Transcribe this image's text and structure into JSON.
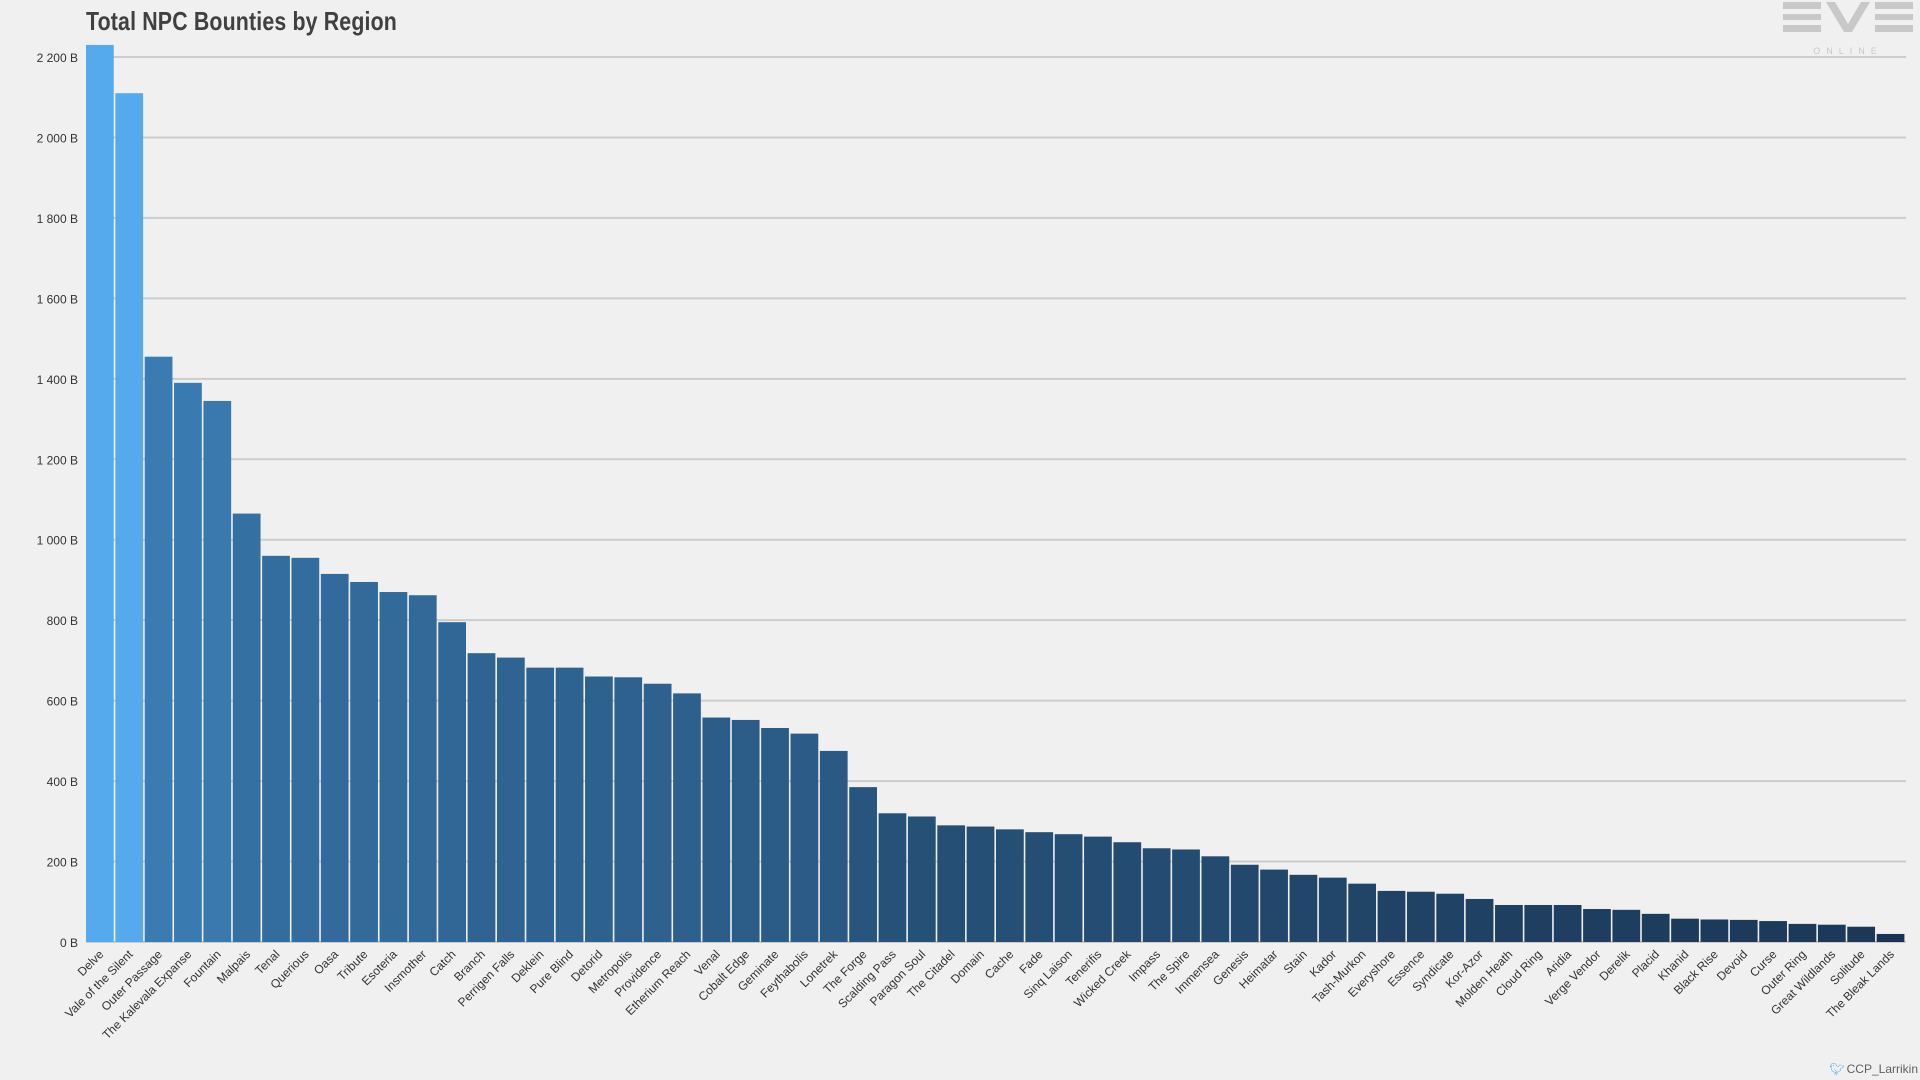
{
  "title": "Total NPC Bounties by Region",
  "credit": "CCP_Larrikin",
  "logo": {
    "main": "EVE",
    "sub": "ONLINE"
  },
  "colors": {
    "background": "#f0f0f0",
    "grid": "#cccccc",
    "tick_text": "#333333",
    "bar_highlight": "#55aaee",
    "bar_high": "#3a7cb2",
    "bar_low": "#152b45"
  },
  "chart_data": {
    "type": "bar",
    "title": "Total NPC Bounties by Region",
    "xlabel": "",
    "ylabel": "",
    "ylim": [
      0,
      2200
    ],
    "yticks": [
      0,
      200,
      400,
      600,
      800,
      1000,
      1200,
      1400,
      1600,
      1800,
      2000,
      2200
    ],
    "ytick_labels": [
      "0 B",
      "200 B",
      "400 B",
      "600 B",
      "800 B",
      "1 000 B",
      "1 200 B",
      "1 400 B",
      "1 600 B",
      "1 800 B",
      "2 000 B",
      "2 200 B"
    ],
    "grid": true,
    "legend": "none",
    "categories": [
      "Delve",
      "Vale of the Silent",
      "Outer Passage",
      "The Kalevala Expanse",
      "Fountain",
      "Malpais",
      "Tenal",
      "Querious",
      "Oasa",
      "Tribute",
      "Esoteria",
      "Insmother",
      "Catch",
      "Branch",
      "Perrigen Falls",
      "Deklein",
      "Pure Blind",
      "Detorid",
      "Metropolis",
      "Providence",
      "Etherium Reach",
      "Venal",
      "Cobalt Edge",
      "Geminate",
      "Feythabolis",
      "Lonetrek",
      "The Forge",
      "Scalding Pass",
      "Paragon Soul",
      "The Citadel",
      "Domain",
      "Cache",
      "Fade",
      "Sinq Laison",
      "Tenerifis",
      "Wicked Creek",
      "Impass",
      "The Spire",
      "Immensea",
      "Genesis",
      "Heimatar",
      "Stain",
      "Kador",
      "Tash-Murkon",
      "Everyshore",
      "Essence",
      "Syndicate",
      "Kor-Azor",
      "Molden Heath",
      "Cloud Ring",
      "Aridia",
      "Verge Vendor",
      "Derelik",
      "Placid",
      "Khanid",
      "Black Rise",
      "Devoid",
      "Curse",
      "Outer Ring",
      "Great Wildlands",
      "Solitude",
      "The Bleak Lands"
    ],
    "values": [
      2230,
      2110,
      1455,
      1390,
      1345,
      1065,
      960,
      955,
      915,
      895,
      870,
      862,
      795,
      718,
      707,
      682,
      682,
      660,
      658,
      642,
      618,
      558,
      552,
      532,
      518,
      475,
      385,
      320,
      312,
      290,
      287,
      280,
      273,
      268,
      262,
      248,
      233,
      230,
      213,
      192,
      180,
      167,
      160,
      145,
      127,
      125,
      120,
      107,
      92,
      92,
      92,
      82,
      80,
      70,
      58,
      56,
      55,
      52,
      45,
      43,
      38,
      20
    ]
  }
}
